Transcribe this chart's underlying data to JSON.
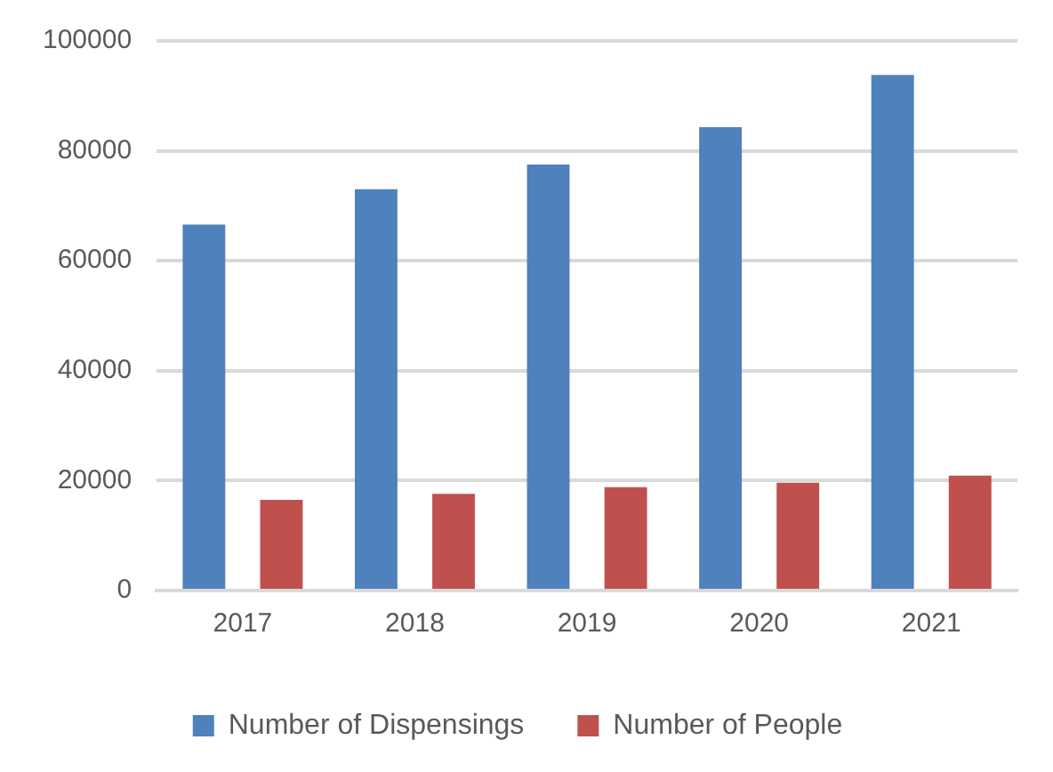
{
  "chart_data": {
    "type": "bar",
    "categories": [
      "2017",
      "2018",
      "2019",
      "2020",
      "2021"
    ],
    "series": [
      {
        "name": "Number of Dispensings",
        "color": "#4f81bd",
        "values": [
          66600,
          73000,
          77500,
          84300,
          93800
        ]
      },
      {
        "name": "Number of People",
        "color": "#c0504d",
        "values": [
          16500,
          17600,
          18800,
          19600,
          20900
        ]
      }
    ],
    "ylim": [
      0,
      100000
    ],
    "yticks": [
      0,
      20000,
      40000,
      60000,
      80000,
      100000
    ],
    "grid": "y",
    "legend": "bottom"
  }
}
